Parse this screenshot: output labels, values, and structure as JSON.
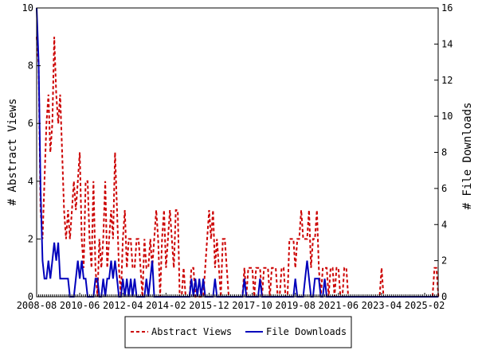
{
  "chart_data": {
    "type": "line",
    "title": "",
    "xlabel": "",
    "ylabel_left": "# Abstract Views",
    "ylabel_right": "# File Downloads",
    "x_start": "2008-08",
    "x_end": "2025-09",
    "x_interval": "monthly",
    "x_tick_labels": [
      "2008-08",
      "2010-06",
      "2012-04",
      "2014-02",
      "2015-12",
      "2017-10",
      "2019-08",
      "2021-06",
      "2023-04",
      "2025-02"
    ],
    "ylim_left": [
      0,
      10
    ],
    "ylim_right": [
      0,
      16
    ],
    "y_ticks_left": [
      "0",
      "2",
      "4",
      "6",
      "8",
      "10"
    ],
    "y_ticks_right": [
      "0",
      "2",
      "4",
      "6",
      "8",
      "10",
      "12",
      "14",
      "16"
    ],
    "grid": false,
    "legend_placement": "bottom",
    "series": [
      {
        "name": "Abstract Views",
        "axis": "left",
        "color": "#cc0000",
        "style": "dashed",
        "values": [
          9,
          8,
          3,
          2,
          4,
          6,
          7,
          5,
          6,
          9,
          7,
          6,
          7,
          5,
          3,
          2,
          3,
          2,
          3,
          4,
          3,
          4,
          5,
          2,
          1,
          4,
          4,
          2,
          1,
          4,
          1,
          0,
          2,
          1,
          2,
          4,
          1,
          2,
          3,
          2,
          5,
          3,
          1,
          0,
          2,
          3,
          1,
          2,
          2,
          1,
          1,
          2,
          2,
          1,
          0,
          2,
          1,
          1,
          2,
          1,
          2,
          3,
          2,
          0,
          2,
          3,
          1,
          2,
          3,
          2,
          1,
          3,
          3,
          0,
          0,
          1,
          0,
          0,
          0,
          1,
          1,
          0,
          0,
          0,
          0,
          0,
          1,
          2,
          3,
          2,
          3,
          1,
          2,
          1,
          0,
          2,
          2,
          1,
          0,
          0,
          0,
          0,
          0,
          0,
          0,
          0,
          1,
          0,
          1,
          1,
          1,
          0,
          1,
          1,
          1,
          0,
          1,
          1,
          1,
          0,
          1,
          1,
          1,
          0,
          0,
          1,
          1,
          0,
          0,
          2,
          2,
          2,
          1,
          2,
          2,
          3,
          2,
          2,
          2,
          3,
          1,
          2,
          2,
          3,
          1,
          0,
          1,
          1,
          1,
          0,
          1,
          1,
          0,
          1,
          1,
          0,
          0,
          1,
          1,
          0,
          0,
          0,
          0,
          0,
          0,
          0,
          0,
          0,
          0,
          0,
          0,
          0,
          0,
          0,
          0,
          0,
          1,
          0,
          0,
          0,
          0,
          0,
          0,
          0,
          0,
          0,
          0,
          0,
          0,
          0,
          0,
          0,
          0,
          0,
          0,
          0,
          0,
          0,
          0,
          0,
          0,
          0,
          0,
          1,
          1,
          0
        ]
      },
      {
        "name": "File Downloads",
        "axis": "right",
        "color": "#0000bb",
        "style": "solid",
        "values": [
          16,
          13,
          6,
          2,
          1,
          1,
          2,
          1,
          2,
          3,
          2,
          3,
          1,
          1,
          1,
          1,
          1,
          0,
          0,
          0,
          1,
          2,
          1,
          2,
          1,
          1,
          0,
          0,
          0,
          0,
          1,
          1,
          0,
          0,
          1,
          0,
          1,
          1,
          2,
          1,
          2,
          1,
          0,
          0,
          1,
          0,
          1,
          0,
          1,
          0,
          1,
          0,
          0,
          0,
          0,
          0,
          1,
          0,
          1,
          2,
          0,
          0,
          0,
          0,
          0,
          0,
          0,
          0,
          0,
          0,
          0,
          0,
          0,
          0,
          0,
          0,
          0,
          0,
          0,
          1,
          0,
          1,
          0,
          1,
          0,
          1,
          0,
          0,
          0,
          0,
          0,
          1,
          0,
          0,
          0,
          0,
          0,
          0,
          0,
          0,
          0,
          0,
          0,
          0,
          0,
          0,
          1,
          0,
          0,
          0,
          0,
          0,
          0,
          0,
          1,
          0,
          0,
          0,
          0,
          0,
          0,
          0,
          0,
          0,
          0,
          0,
          0,
          0,
          0,
          0,
          0,
          0,
          1,
          0,
          0,
          0,
          0,
          1,
          2,
          1,
          0,
          0,
          1,
          1,
          1,
          0,
          0,
          1,
          0,
          0,
          0,
          0,
          0,
          0,
          0,
          0,
          0,
          0,
          0,
          0,
          0,
          0,
          0,
          0,
          0,
          0,
          0,
          0,
          0,
          0,
          0,
          0,
          0,
          0,
          0,
          0,
          0,
          0,
          0,
          0,
          0,
          0,
          0,
          0,
          0,
          0,
          0,
          0,
          0,
          0,
          0,
          0,
          0,
          0,
          0,
          0,
          0,
          0,
          0,
          0,
          0,
          0,
          0,
          0,
          0,
          0
        ]
      }
    ]
  }
}
